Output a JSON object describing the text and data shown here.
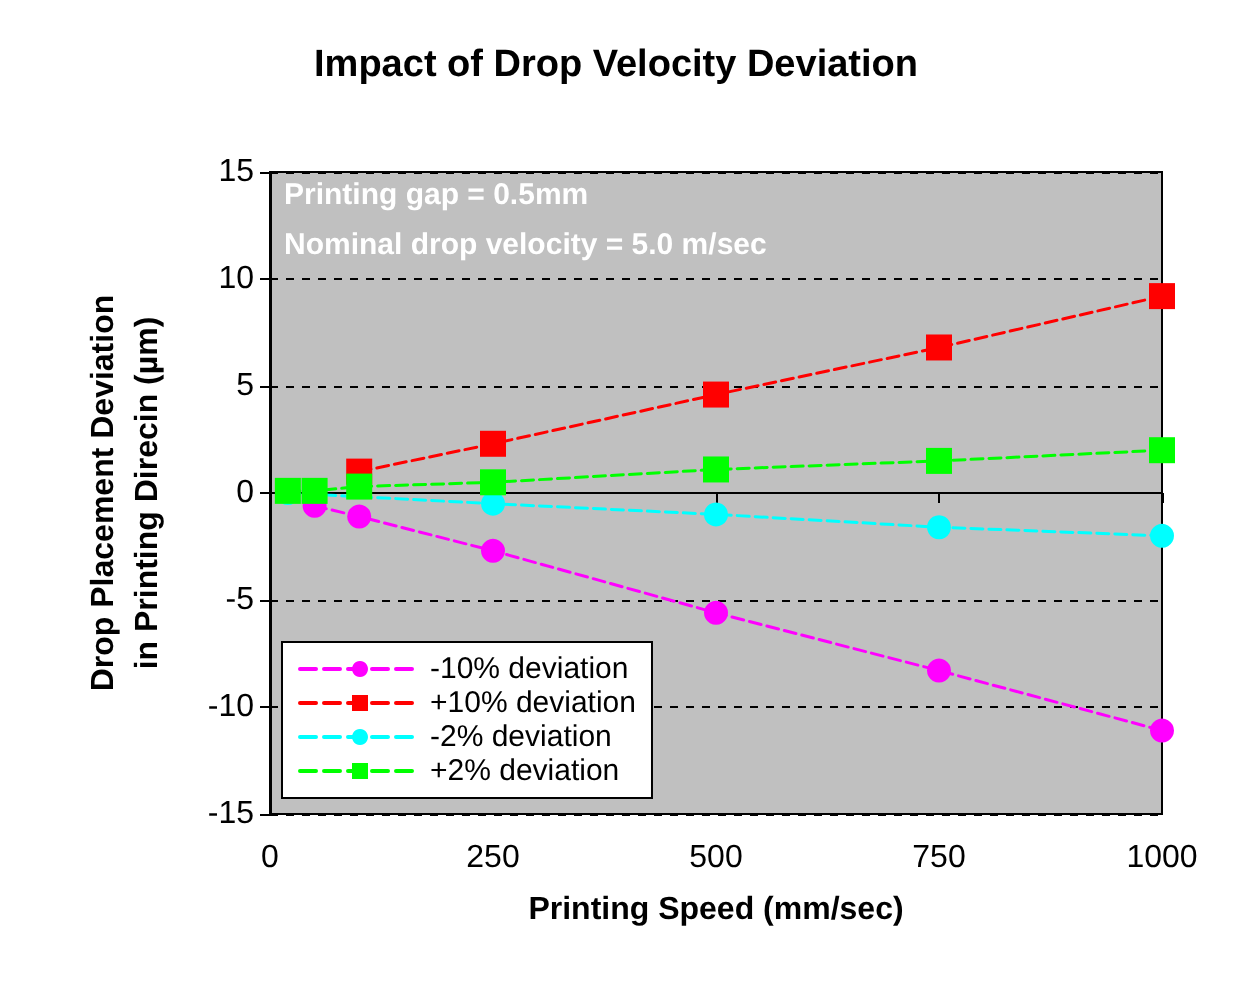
{
  "chart_data": {
    "type": "line",
    "title": "Impact of Drop Velocity Deviation",
    "xlabel": "Printing Speed (mm/sec)",
    "ylabel": "Drop Placement Deviation\nin Printing Direcin (µm)",
    "annotations": [
      "Printing gap = 0.5mm",
      "Nominal drop velocity = 5.0 m/sec"
    ],
    "x": [
      20,
      50,
      100,
      250,
      500,
      750,
      1000
    ],
    "series": [
      {
        "name": "-10% deviation",
        "color": "#ff00ff",
        "marker": "circle",
        "values": [
          null,
          -0.6,
          -1.1,
          -2.7,
          -5.6,
          -8.3,
          -11.1
        ]
      },
      {
        "name": "+10% deviation",
        "color": "#ff0000",
        "marker": "square",
        "values": [
          null,
          null,
          1.0,
          2.3,
          4.6,
          6.8,
          9.2
        ]
      },
      {
        "name": "-2% deviation",
        "color": "#00ffff",
        "marker": "circle",
        "values": [
          0,
          null,
          null,
          -0.5,
          -1.0,
          -1.6,
          -2.0
        ]
      },
      {
        "name": "+2% deviation",
        "color": "#00ff00",
        "marker": "square",
        "values": [
          0.1,
          0.1,
          0.3,
          0.5,
          1.1,
          1.5,
          2.0
        ]
      }
    ],
    "xlim": [
      0,
      1000
    ],
    "xticks": [
      0,
      250,
      500,
      750,
      1000
    ],
    "ylim": [
      -15,
      15
    ],
    "yticks": [
      -15,
      -10,
      -5,
      0,
      5,
      10,
      15
    ],
    "grid": "y",
    "legend": "bottom left",
    "line_style": "dashed"
  }
}
